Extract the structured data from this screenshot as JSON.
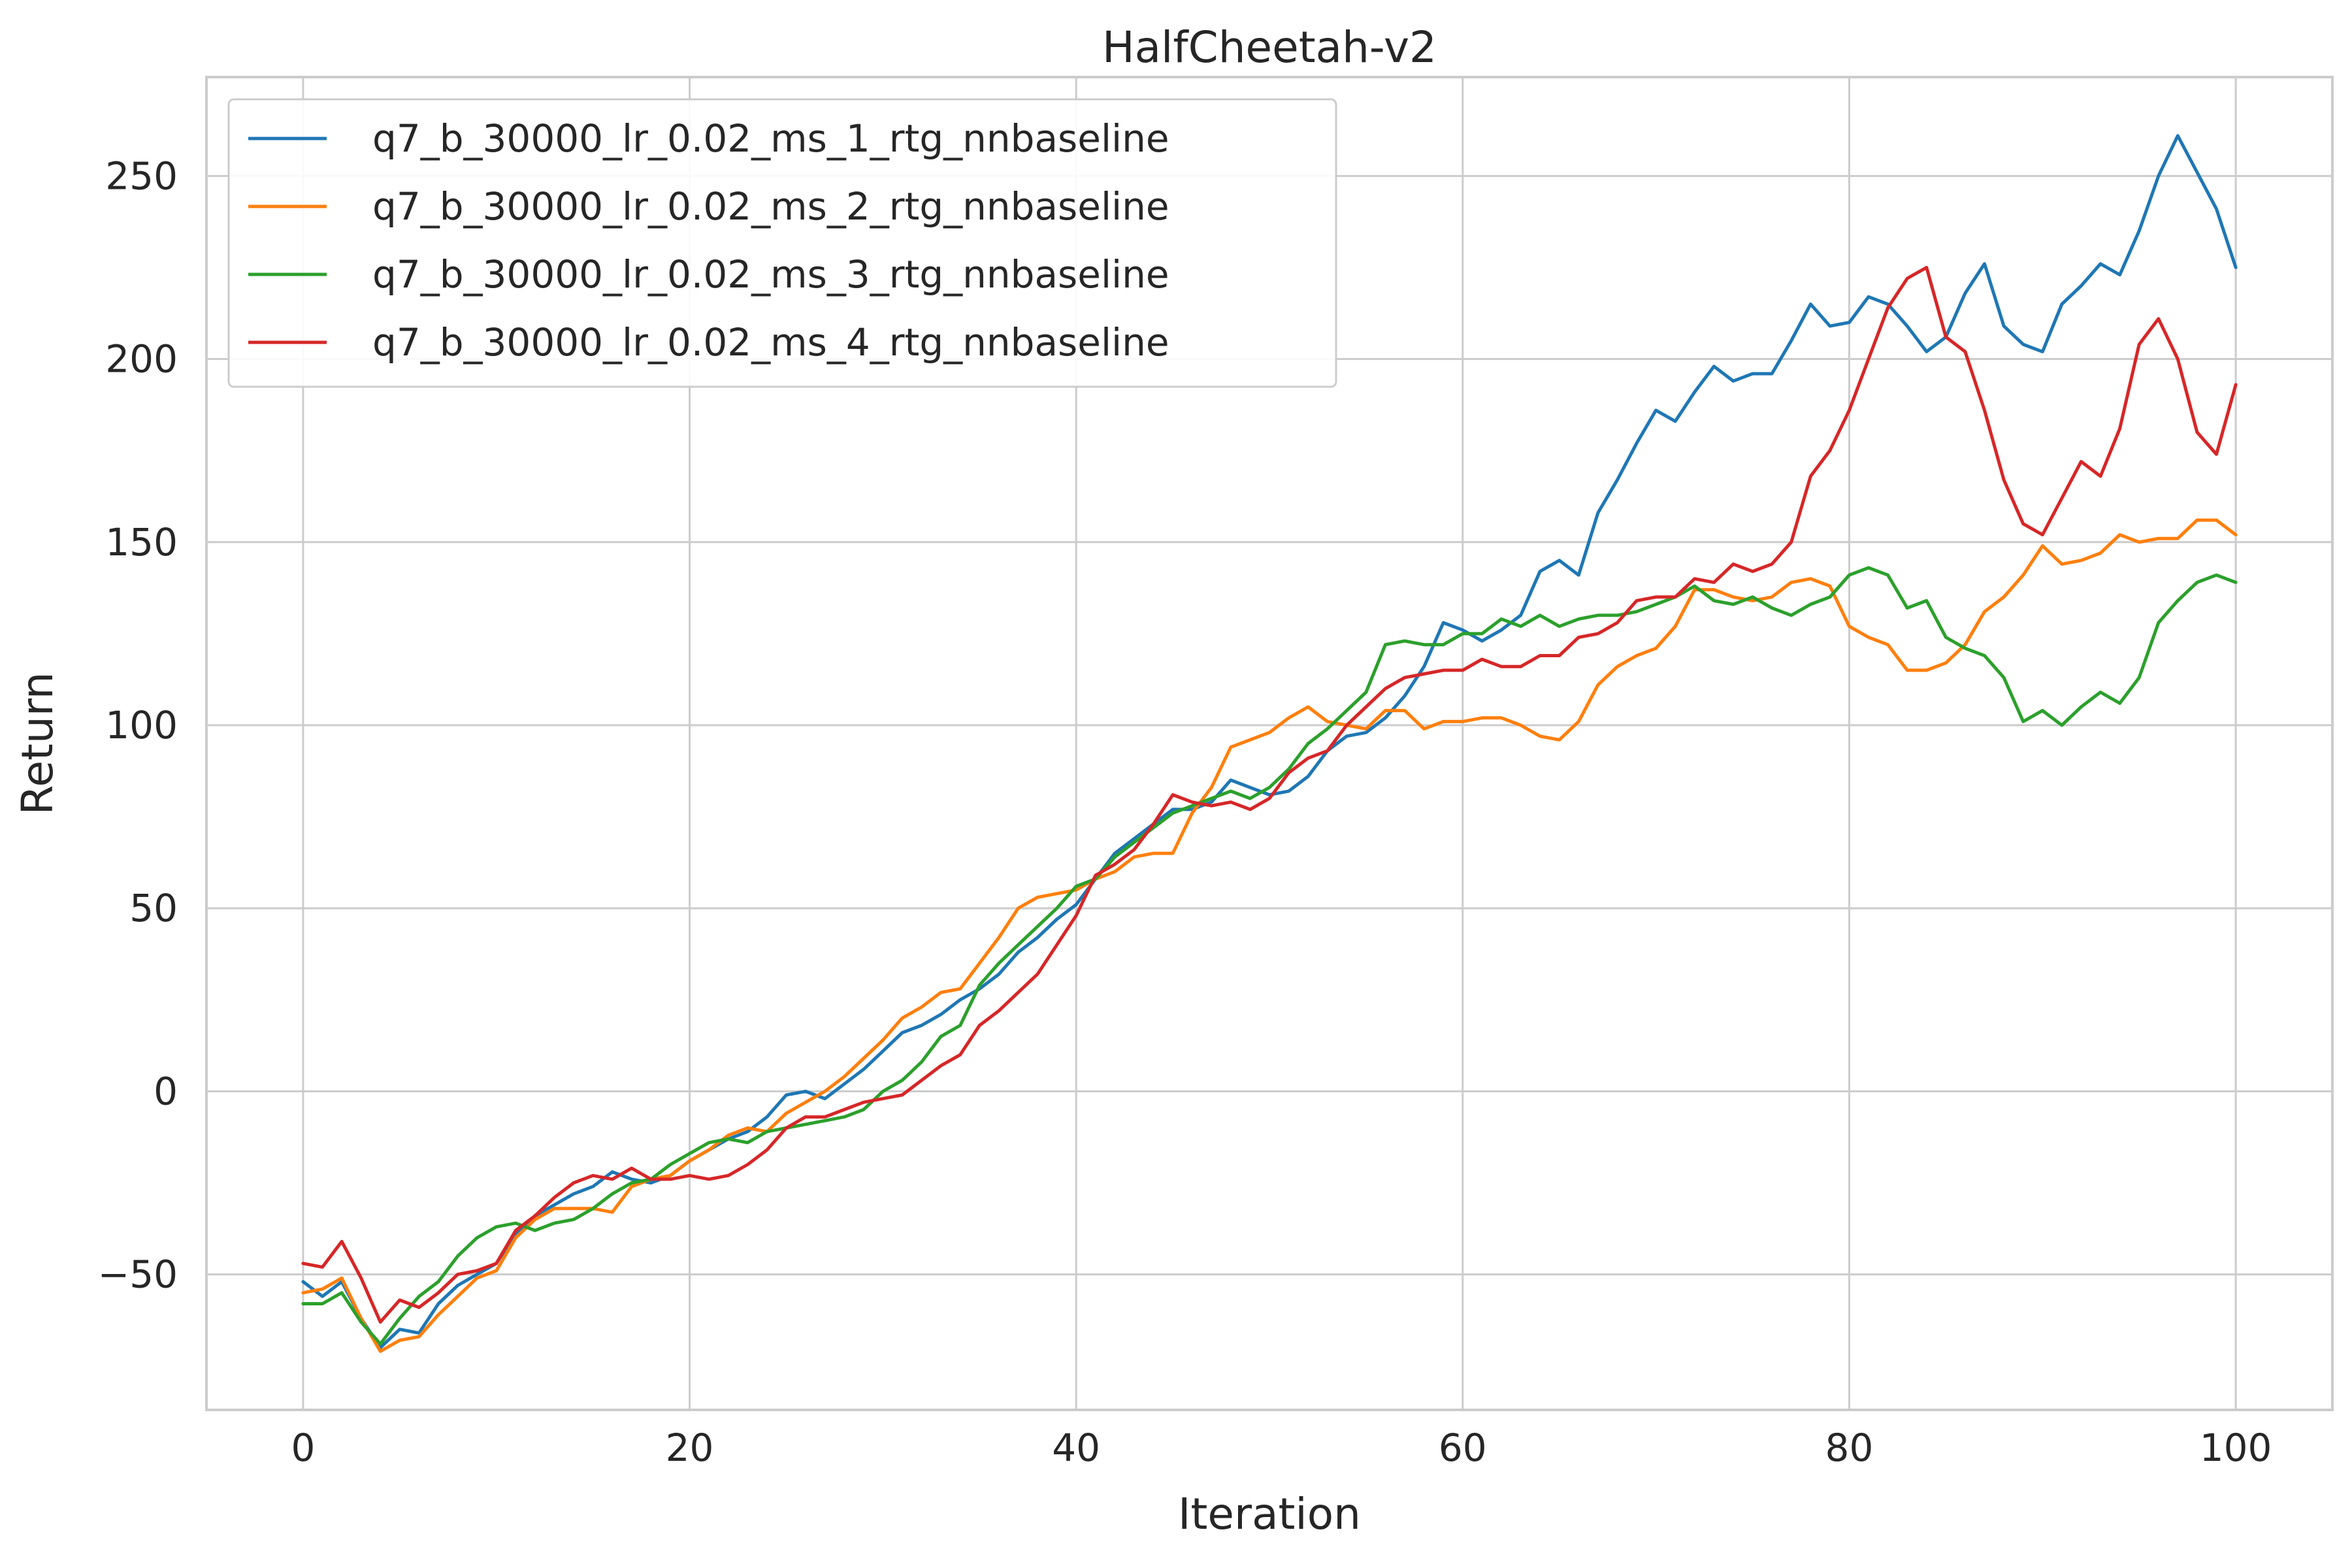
{
  "chart_data": {
    "type": "line",
    "title": "HalfCheetah-v2",
    "xlabel": "Iteration",
    "ylabel": "Return",
    "xlim": [
      -5,
      105
    ],
    "ylim": [
      -87,
      277
    ],
    "xticks": [
      0,
      20,
      40,
      60,
      80,
      100
    ],
    "yticks": [
      -50,
      0,
      50,
      100,
      150,
      200,
      250
    ],
    "ytick_labels": [
      "−50",
      "0",
      "50",
      "100",
      "150",
      "200",
      "250"
    ],
    "grid": true,
    "legend_position": "top-left",
    "x": [
      0,
      1,
      2,
      3,
      4,
      5,
      6,
      7,
      8,
      9,
      10,
      11,
      12,
      13,
      14,
      15,
      16,
      17,
      18,
      19,
      20,
      21,
      22,
      23,
      24,
      25,
      26,
      27,
      28,
      29,
      30,
      31,
      32,
      33,
      34,
      35,
      36,
      37,
      38,
      39,
      40,
      41,
      42,
      43,
      44,
      45,
      46,
      47,
      48,
      49,
      50,
      51,
      52,
      53,
      54,
      55,
      56,
      57,
      58,
      59,
      60,
      61,
      62,
      63,
      64,
      65,
      66,
      67,
      68,
      69,
      70,
      71,
      72,
      73,
      74,
      75,
      76,
      77,
      78,
      79,
      80,
      81,
      82,
      83,
      84,
      85,
      86,
      87,
      88,
      89,
      90,
      91,
      92,
      93,
      94,
      95,
      96,
      97,
      98,
      99,
      100
    ],
    "series": [
      {
        "name": "q7_b_30000_lr_0.02_ms_1_rtg_nnbaseline",
        "color": "#1f77b4",
        "values": [
          -52,
          -56,
          -52,
          -62,
          -70,
          -65,
          -66,
          -58,
          -53,
          -50,
          -47,
          -39,
          -34,
          -31,
          -28,
          -26,
          -22,
          -24,
          -25,
          -23,
          -19,
          -16,
          -13,
          -11,
          -7,
          -1,
          0,
          -2,
          2,
          6,
          11,
          16,
          18,
          21,
          25,
          28,
          32,
          38,
          42,
          47,
          51,
          58,
          65,
          69,
          73,
          77,
          77,
          79,
          85,
          83,
          81,
          82,
          86,
          93,
          97,
          98,
          102,
          108,
          116,
          128,
          126,
          123,
          126,
          130,
          142,
          145,
          141,
          158,
          167,
          177,
          186,
          183,
          191,
          198,
          194,
          196,
          196,
          205,
          215,
          209,
          210,
          217,
          215,
          209,
          202,
          206,
          218,
          226,
          209,
          204,
          202,
          215,
          220,
          226,
          223,
          235,
          250,
          261,
          251,
          241,
          225
        ]
      },
      {
        "name": "q7_b_30000_lr_0.02_ms_2_rtg_nnbaseline",
        "color": "#ff7f0e",
        "values": [
          -55,
          -54,
          -51,
          -62,
          -71,
          -68,
          -67,
          -61,
          -56,
          -51,
          -49,
          -40,
          -35,
          -32,
          -32,
          -32,
          -33,
          -26,
          -24,
          -23,
          -19,
          -16,
          -12,
          -10,
          -11,
          -6,
          -3,
          0,
          4,
          9,
          14,
          20,
          23,
          27,
          28,
          35,
          42,
          50,
          53,
          54,
          55,
          58,
          60,
          64,
          65,
          65,
          76,
          83,
          94,
          96,
          98,
          102,
          105,
          101,
          100,
          99,
          104,
          104,
          99,
          101,
          101,
          102,
          102,
          100,
          97,
          96,
          101,
          111,
          116,
          119,
          121,
          127,
          137,
          137,
          135,
          134,
          135,
          139,
          140,
          138,
          127,
          124,
          122,
          115,
          115,
          117,
          122,
          131,
          135,
          141,
          149,
          144,
          145,
          147,
          152,
          150,
          151,
          151,
          156,
          156,
          152
        ]
      },
      {
        "name": "q7_b_30000_lr_0.02_ms_3_rtg_nnbaseline",
        "color": "#2ca02c",
        "values": [
          -58,
          -58,
          -55,
          -63,
          -69,
          -62,
          -56,
          -52,
          -45,
          -40,
          -37,
          -36,
          -38,
          -36,
          -35,
          -32,
          -28,
          -25,
          -24,
          -20,
          -17,
          -14,
          -13,
          -14,
          -11,
          -10,
          -9,
          -8,
          -7,
          -5,
          0,
          3,
          8,
          15,
          18,
          29,
          35,
          40,
          45,
          50,
          56,
          58,
          64,
          68,
          72,
          76,
          78,
          80,
          82,
          80,
          83,
          88,
          95,
          99,
          104,
          109,
          122,
          123,
          122,
          122,
          125,
          125,
          129,
          127,
          130,
          127,
          129,
          130,
          130,
          131,
          133,
          135,
          138,
          134,
          133,
          135,
          132,
          130,
          133,
          135,
          141,
          143,
          141,
          132,
          134,
          124,
          121,
          119,
          113,
          101,
          104,
          100,
          105,
          109,
          106,
          113,
          128,
          134,
          139,
          141,
          139
        ]
      },
      {
        "name": "q7_b_30000_lr_0.02_ms_4_rtg_nnbaseline",
        "color": "#d62728",
        "values": [
          -47,
          -48,
          -41,
          -51,
          -63,
          -57,
          -59,
          -55,
          -50,
          -49,
          -47,
          -38,
          -34,
          -29,
          -25,
          -23,
          -24,
          -21,
          -24,
          -24,
          -23,
          -24,
          -23,
          -20,
          -16,
          -10,
          -7,
          -7,
          -5,
          -3,
          -2,
          -1,
          3,
          7,
          10,
          18,
          22,
          27,
          32,
          40,
          48,
          59,
          62,
          66,
          73,
          81,
          79,
          78,
          79,
          77,
          80,
          87,
          91,
          93,
          100,
          105,
          110,
          113,
          114,
          115,
          115,
          118,
          116,
          116,
          119,
          119,
          124,
          125,
          128,
          134,
          135,
          135,
          140,
          139,
          144,
          142,
          144,
          150,
          168,
          175,
          186,
          200,
          214,
          222,
          225,
          206,
          202,
          186,
          167,
          155,
          152,
          162,
          172,
          168,
          181,
          204,
          211,
          200,
          180,
          174,
          193
        ]
      }
    ]
  }
}
